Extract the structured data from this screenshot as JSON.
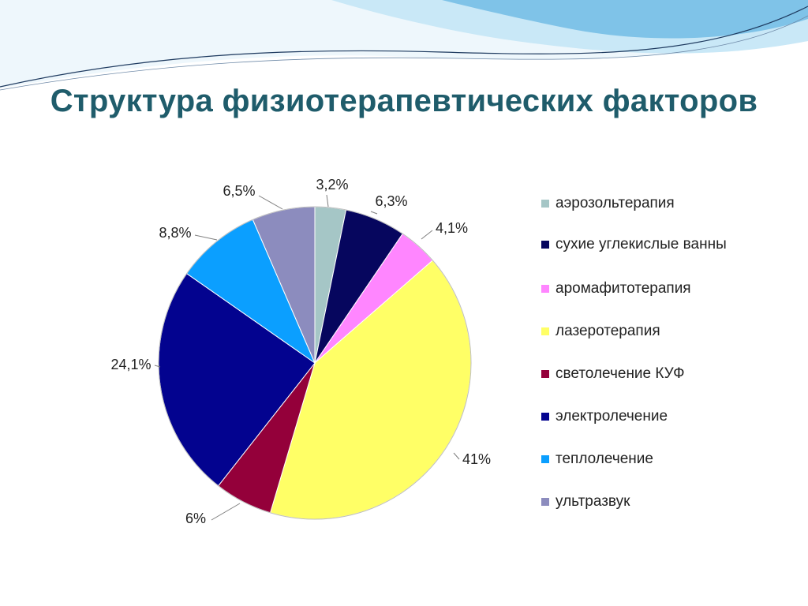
{
  "slide": {
    "title": "Структура физиотерапевтических факторов"
  },
  "colors": {
    "title": "#1f5c6b",
    "header_light": "#dbeef8",
    "header_mid": "#9fd3ee",
    "header_dark": "#2f8fc7"
  },
  "chart_data": {
    "type": "pie",
    "title": "",
    "legend_position": "right",
    "slices": [
      {
        "label": "аэрозольтерапия",
        "value": 3.2,
        "display": "3,2%",
        "color": "#a5c6c6"
      },
      {
        "label": "сухие углекислые ванны",
        "value": 6.3,
        "display": "6,3%",
        "color": "#06065e"
      },
      {
        "label": "аромафитотерапия",
        "value": 4.1,
        "display": "4,1%",
        "color": "#ff86ff"
      },
      {
        "label": "лазеротерапия",
        "value": 41,
        "display": "41%",
        "color": "#ffff66"
      },
      {
        "label": "светолечение КУФ",
        "value": 6,
        "display": "6%",
        "color": "#94003a"
      },
      {
        "label": "электролечение",
        "value": 24.1,
        "display": "24,1%",
        "color": "#03038f"
      },
      {
        "label": "теплолечение",
        "value": 8.8,
        "display": "8,8%",
        "color": "#0b9fff"
      },
      {
        "label": "ультразвук",
        "value": 6.5,
        "display": "6,5%",
        "color": "#8c8cbe"
      }
    ]
  }
}
